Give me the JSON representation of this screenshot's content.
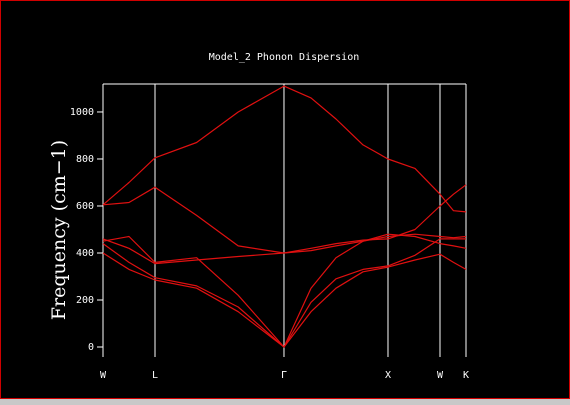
{
  "chart_data": {
    "type": "line",
    "title": "Model_2 Phonon Dispersion",
    "y_label": "Frequency (cm−1)",
    "x": [
      0,
      0.25,
      0.5,
      0.9,
      1.3,
      1.74,
      2.0,
      2.24,
      2.5,
      2.74,
      3.0,
      3.24,
      3.37,
      3.49
    ],
    "xlim": [
      0,
      3.49
    ],
    "xticks": [
      {
        "value": 0,
        "label": "W"
      },
      {
        "value": 0.5,
        "label": "L"
      },
      {
        "value": 1.74,
        "label": "Γ"
      },
      {
        "value": 2.74,
        "label": "X"
      },
      {
        "value": 3.24,
        "label": "W"
      },
      {
        "value": 3.49,
        "label": "K"
      }
    ],
    "ylim": [
      0,
      1119
    ],
    "yticks": [
      0,
      200,
      400,
      600,
      800,
      1000
    ],
    "series": [
      {
        "color": "#e01010",
        "values": [
          605,
          700,
          805,
          870,
          1000,
          1110,
          1060,
          970,
          860,
          800,
          760,
          650,
          580,
          575
        ]
      },
      {
        "color": "#e01010",
        "values": [
          605,
          615,
          680,
          560,
          430,
          400,
          420,
          440,
          455,
          460,
          500,
          600,
          650,
          690
        ]
      },
      {
        "color": "#e01010",
        "values": [
          460,
          420,
          355,
          370,
          385,
          400,
          410,
          430,
          450,
          470,
          480,
          470,
          465,
          470
        ]
      },
      {
        "color": "#e01010",
        "values": [
          450,
          470,
          360,
          380,
          220,
          0,
          250,
          380,
          450,
          480,
          470,
          440,
          430,
          420
        ]
      },
      {
        "color": "#e01010",
        "values": [
          440,
          360,
          295,
          260,
          170,
          0,
          190,
          290,
          330,
          345,
          390,
          460,
          460,
          460
        ]
      },
      {
        "color": "#e01010",
        "values": [
          400,
          330,
          285,
          250,
          150,
          0,
          150,
          250,
          320,
          340,
          370,
          395,
          360,
          330
        ]
      }
    ]
  }
}
